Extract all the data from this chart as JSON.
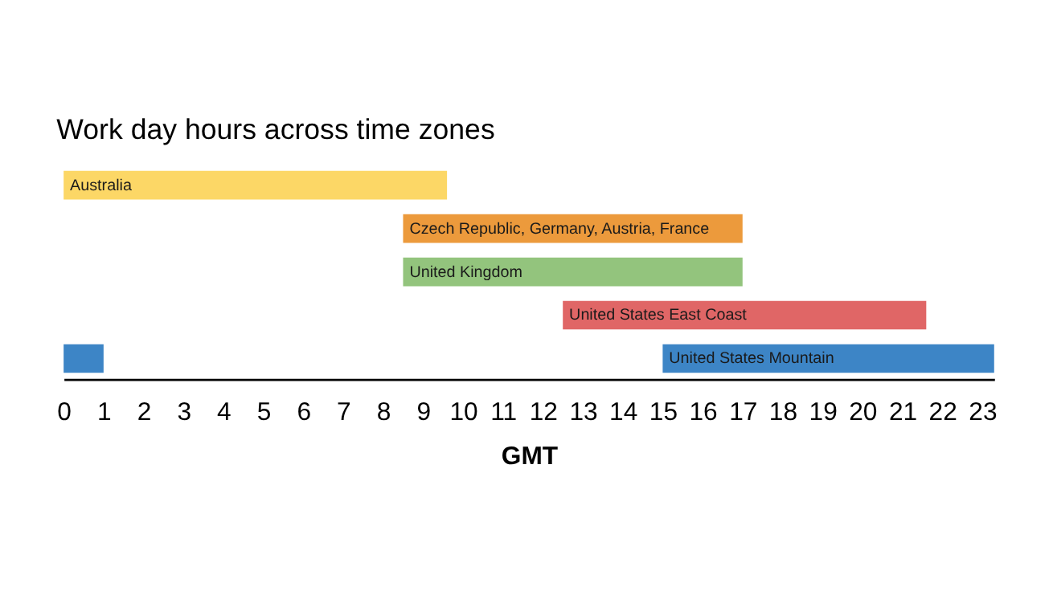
{
  "chart_data": {
    "type": "bar",
    "orientation": "horizontal",
    "title": "Work day hours across time zones",
    "xlabel": "GMT",
    "categories": [
      "Australia",
      "Czech Republic, Germany, Austria, France",
      "United Kingdom",
      "United States East Coast",
      "United States Mountain"
    ],
    "series": [
      {
        "colors": [
          "#fcd766",
          "#ec9a3c",
          "#93c47d",
          "#e06666",
          "#3d85c6"
        ],
        "base": [
          0,
          8.5,
          8.5,
          12.5,
          15
        ],
        "values": [
          9.6,
          8.5,
          8.5,
          9.1,
          8.3
        ]
      },
      {
        "colors": [
          null,
          null,
          null,
          null,
          "#3d85c6"
        ],
        "base": [
          null,
          null,
          null,
          null,
          0
        ],
        "values": [
          null,
          null,
          null,
          null,
          1
        ]
      }
    ],
    "xlim": [
      0,
      23.3
    ],
    "xticks": [
      0,
      1,
      2,
      3,
      4,
      5,
      6,
      7,
      8,
      9,
      10,
      11,
      12,
      13,
      14,
      15,
      16,
      17,
      18,
      19,
      20,
      21,
      22,
      23
    ],
    "tick_labels": "x",
    "grid": false
  }
}
